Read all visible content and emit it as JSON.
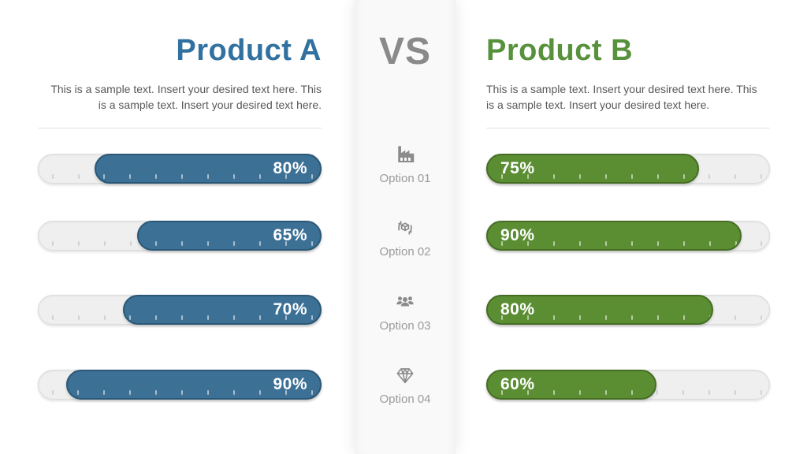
{
  "slide": {
    "products": [
      {
        "id": "product-a",
        "title": "Product A",
        "description_lines": [
          "This is a sample text. Insert your desired text here. This",
          "is a sample text. Insert your desired text here."
        ],
        "align": "right",
        "title_color": "#31719f",
        "bar_fill": "#3c7095",
        "bar_border": "#2a5876",
        "bars": [
          {
            "value": 80,
            "label": "80%"
          },
          {
            "value": 65,
            "label": "65%"
          },
          {
            "value": 70,
            "label": "70%"
          },
          {
            "value": 90,
            "label": "90%"
          }
        ]
      },
      {
        "id": "product-b",
        "title": "Product B",
        "description_lines": [
          "This is a sample text. Insert your desired text here. This",
          "is a sample text. Insert your desired text here."
        ],
        "align": "left",
        "title_color": "#57913c",
        "bar_fill": "#5b8e33",
        "bar_border": "#466d24",
        "bars": [
          {
            "value": 75,
            "label": "75%"
          },
          {
            "value": 90,
            "label": "90%"
          },
          {
            "value": 80,
            "label": "80%"
          },
          {
            "value": 60,
            "label": "60%"
          }
        ]
      }
    ],
    "versus": {
      "label": "VS",
      "options": [
        {
          "label": "Option 01",
          "icon": "factory-icon"
        },
        {
          "label": "Option 02",
          "icon": "shipping-cycle-icon"
        },
        {
          "label": "Option 03",
          "icon": "team-icon"
        },
        {
          "label": "Option 04",
          "icon": "diamond-icon"
        }
      ]
    }
  },
  "chart_data": {
    "type": "bar",
    "categories": [
      "Option 01",
      "Option 02",
      "Option 03",
      "Option 04"
    ],
    "series": [
      {
        "name": "Product A",
        "values": [
          80,
          65,
          70,
          90
        ],
        "color": "#3c7095",
        "bar_direction": "right-anchored"
      },
      {
        "name": "Product B",
        "values": [
          75,
          90,
          80,
          60
        ],
        "color": "#5b8e33",
        "bar_direction": "left-anchored"
      }
    ],
    "value_format": "percent",
    "xlim": [
      0,
      100
    ],
    "grid": false,
    "legend_position": "column-titles"
  },
  "colors": {
    "track": "#efefef",
    "track_border": "#dcdcdc",
    "vs_text": "#8a8a8a",
    "option_label": "#9b9b9b",
    "description_text": "#57585a",
    "divider": "#e3e3e3",
    "background": "#ffffff"
  }
}
